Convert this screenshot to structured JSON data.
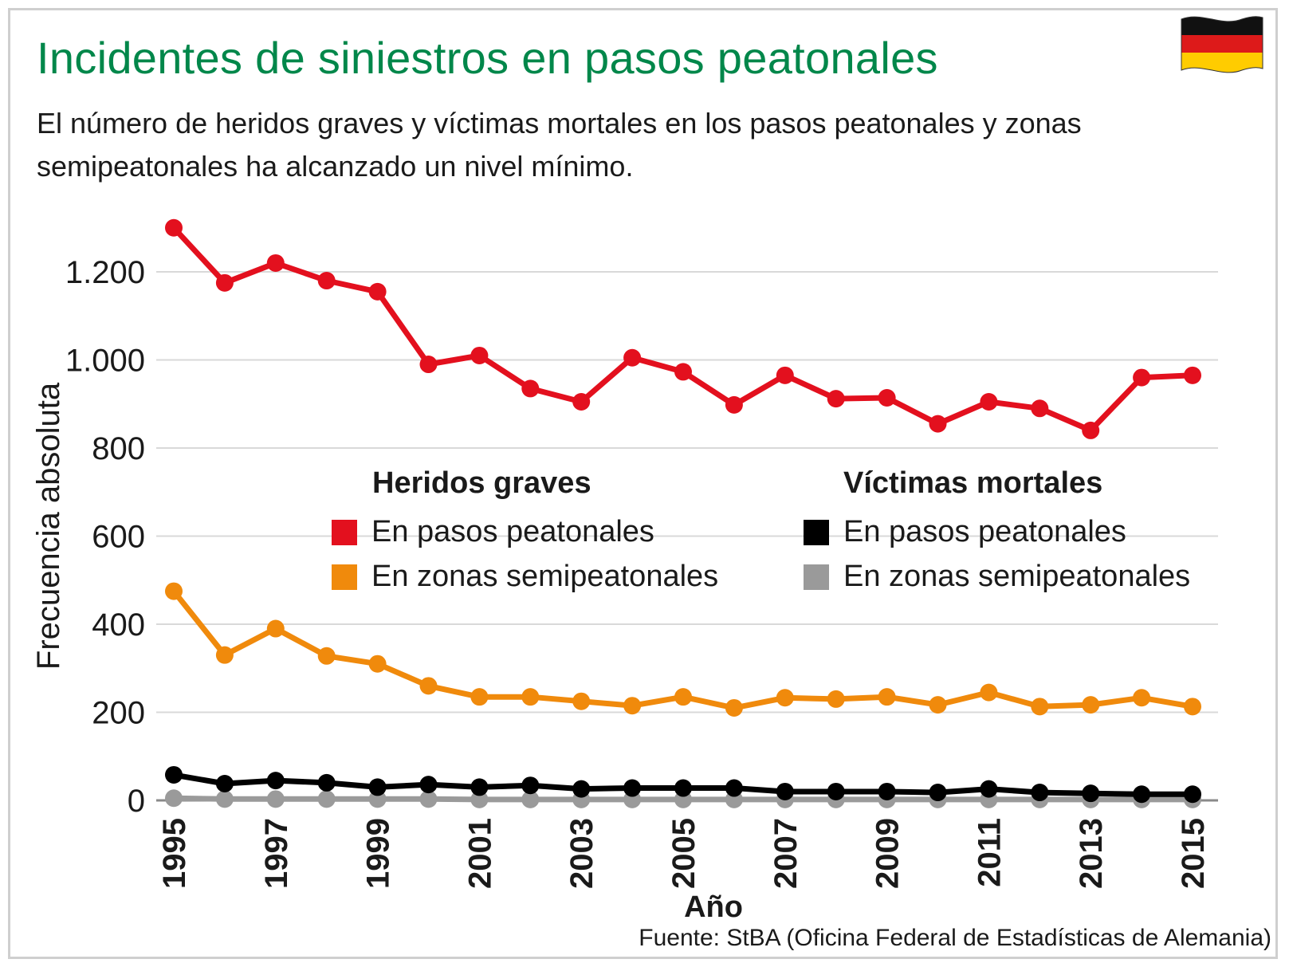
{
  "header": {
    "title": "Incidentes de siniestros en pasos peatonales",
    "subtitle": "El número de heridos graves y víctimas mortales en los pasos peatonales y zonas semipeatonales ha alcanzado un nivel mínimo."
  },
  "flag_icon": "germany-flag-icon",
  "colors": {
    "title": "#00874a",
    "heridos_pasos": "#e3101e",
    "heridos_zonas": "#f08a0c",
    "victimas_pasos": "#000000",
    "victimas_zonas": "#9a9a9a",
    "grid": "#d9d9d9"
  },
  "legend": {
    "group1_title": "Heridos graves",
    "group1_items": [
      "En pasos peatonales",
      "En zonas semipeatonales"
    ],
    "group2_title": "Víctimas mortales",
    "group2_items": [
      "En pasos peatonales",
      "En zonas semipeatonales"
    ]
  },
  "source": "Fuente: StBA (Oficina Federal de Estadísticas de Alemania)",
  "chart_data": {
    "type": "line",
    "title": "Incidentes de siniestros en pasos peatonales",
    "xlabel": "Año",
    "ylabel": "Frecuencia absoluta",
    "x": [
      1995,
      1996,
      1997,
      1998,
      1999,
      2000,
      2001,
      2002,
      2003,
      2004,
      2005,
      2006,
      2007,
      2008,
      2009,
      2010,
      2011,
      2012,
      2013,
      2014,
      2015
    ],
    "xtick_labels": [
      "1995",
      "1997",
      "1999",
      "2001",
      "2003",
      "2005",
      "2007",
      "2009",
      "2011",
      "2013",
      "2015"
    ],
    "ylim": [
      0,
      1300
    ],
    "yticks": [
      0,
      200,
      400,
      600,
      800,
      1000,
      1200
    ],
    "ytick_labels": [
      "0",
      "200",
      "400",
      "600",
      "800",
      "1.000",
      "1.200"
    ],
    "grid": true,
    "series": [
      {
        "name": "Heridos graves – En pasos peatonales",
        "color": "#e3101e",
        "values": [
          1300,
          1175,
          1220,
          1180,
          1155,
          990,
          1010,
          935,
          905,
          1005,
          973,
          898,
          965,
          912,
          914,
          855,
          905,
          890,
          840,
          960,
          965
        ]
      },
      {
        "name": "Heridos graves – En zonas semipeatonales",
        "color": "#f08a0c",
        "values": [
          475,
          330,
          390,
          328,
          310,
          260,
          235,
          235,
          225,
          215,
          235,
          210,
          233,
          230,
          235,
          217,
          245,
          213,
          217,
          233,
          213
        ]
      },
      {
        "name": "Víctimas mortales – En pasos peatonales",
        "color": "#000000",
        "values": [
          58,
          38,
          45,
          40,
          30,
          36,
          30,
          34,
          26,
          28,
          28,
          28,
          20,
          20,
          20,
          18,
          26,
          18,
          16,
          14,
          14
        ]
      },
      {
        "name": "Víctimas mortales – En zonas semipeatonales",
        "color": "#9a9a9a",
        "values": [
          5,
          3,
          3,
          3,
          3,
          3,
          2,
          2,
          2,
          2,
          2,
          2,
          2,
          2,
          2,
          2,
          2,
          2,
          2,
          2,
          2
        ]
      }
    ]
  }
}
